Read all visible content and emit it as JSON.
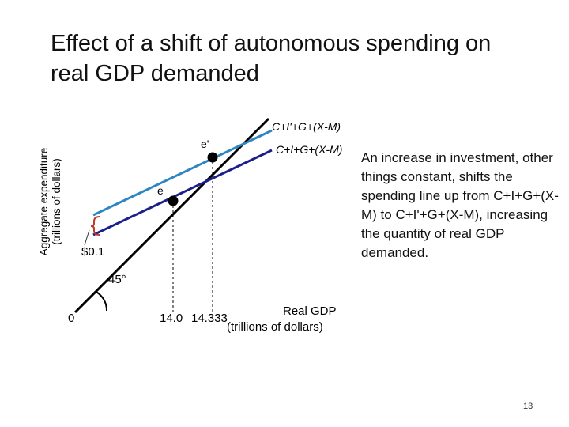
{
  "title": {
    "line1": "Effect of a shift of autonomous spending on",
    "line2": "real GDP demanded"
  },
  "y_axis": {
    "line1": "Aggregate expenditure",
    "line2": "(trillions of dollars)"
  },
  "x_axis": {
    "line1": "Real GDP",
    "line2": "(trillions of dollars)"
  },
  "origin_label": "0",
  "x_ticks": [
    "14.0",
    "14.333"
  ],
  "lines": {
    "upper": "C+I'+G+(X-M)",
    "lower": "C+I+G+(X-M)"
  },
  "points": {
    "e_prime": "e'",
    "e": "e"
  },
  "shift_label": "$0.1",
  "angle_label": "45°",
  "explanation": "An increase in investment, other things constant, shifts the spending line up from C+I+G+(X-M) to C+I'+G+(X-M), increasing the quantity of real GDP demanded.",
  "slide_number": "13",
  "colors": {
    "upper_line": "#2e86c1",
    "lower_line": "#1b1f8a",
    "axis_line": "#000000",
    "points": "#000000"
  }
}
